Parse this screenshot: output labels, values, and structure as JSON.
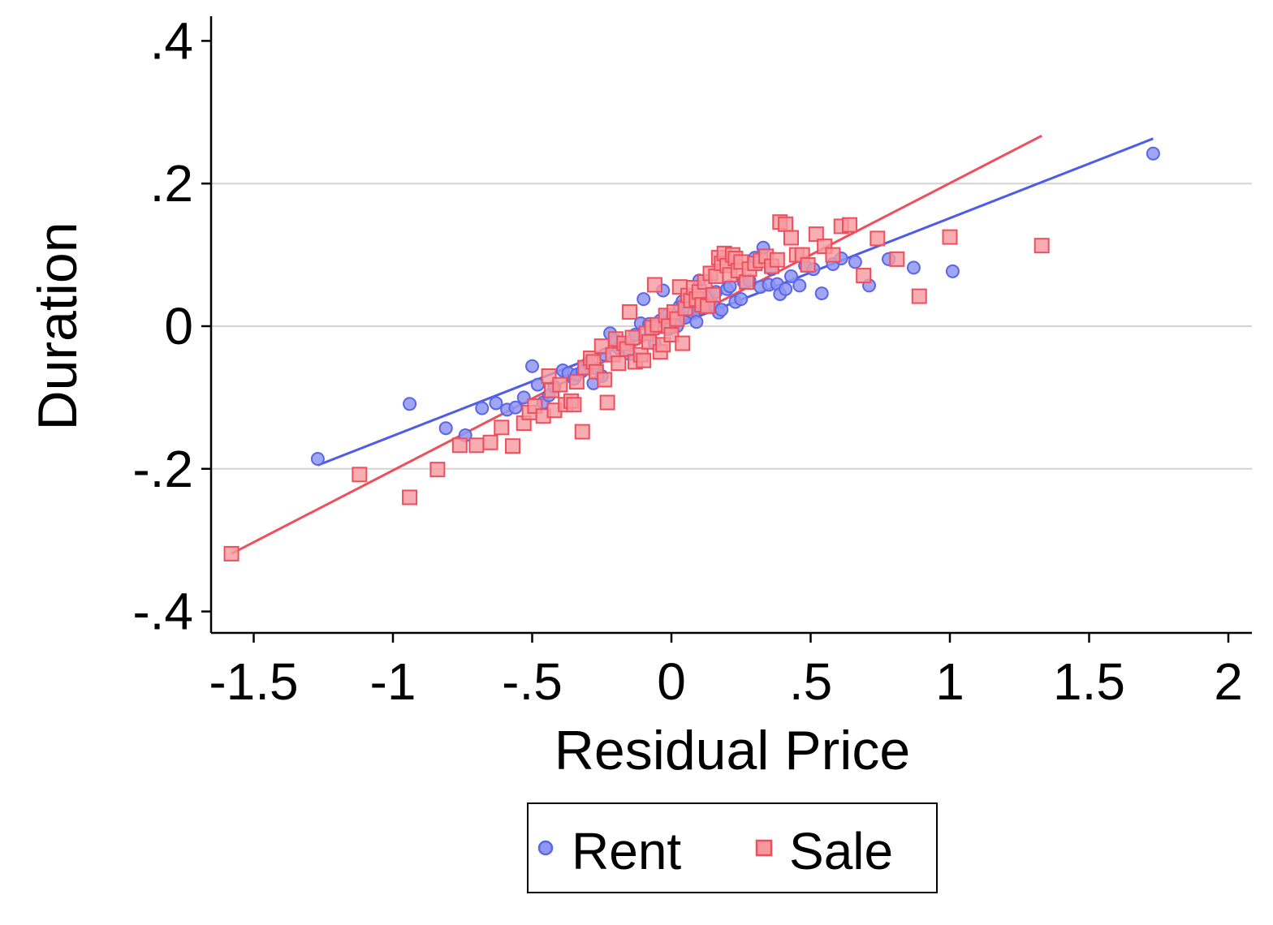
{
  "chart_data": {
    "type": "scatter",
    "title": "",
    "xlabel": "Residual Price",
    "ylabel": "Duration",
    "xlim": [
      -1.65,
      2.08
    ],
    "ylim": [
      -0.43,
      0.43
    ],
    "xticks": [
      {
        "value": -1.5,
        "label": "-1.5"
      },
      {
        "value": -1,
        "label": "-1"
      },
      {
        "value": -0.5,
        "label": "-.5"
      },
      {
        "value": 0,
        "label": "0"
      },
      {
        "value": 0.5,
        "label": ".5"
      },
      {
        "value": 1,
        "label": "1"
      },
      {
        "value": 1.5,
        "label": "1.5"
      },
      {
        "value": 2,
        "label": "2"
      }
    ],
    "yticks": [
      {
        "value": -0.4,
        "label": "-.4"
      },
      {
        "value": -0.2,
        "label": "-.2"
      },
      {
        "value": 0,
        "label": "0"
      },
      {
        "value": 0.2,
        "label": ".2"
      },
      {
        "value": 0.4,
        "label": ".4"
      }
    ],
    "grid": true,
    "legend_position": "bottom",
    "series": [
      {
        "name": "Rent",
        "marker": "circle",
        "color": "#4f5ce8",
        "fit_line": {
          "x": [
            -1.27,
            1.73
          ],
          "y": [
            -0.195,
            0.263
          ]
        },
        "points": [
          [
            -1.27,
            -0.186
          ],
          [
            -0.94,
            -0.109
          ],
          [
            -0.81,
            -0.143
          ],
          [
            -0.74,
            -0.153
          ],
          [
            -0.68,
            -0.115
          ],
          [
            -0.63,
            -0.108
          ],
          [
            -0.59,
            -0.117
          ],
          [
            -0.56,
            -0.114
          ],
          [
            -0.53,
            -0.1
          ],
          [
            -0.5,
            -0.056
          ],
          [
            -0.48,
            -0.082
          ],
          [
            -0.46,
            -0.107
          ],
          [
            -0.44,
            -0.097
          ],
          [
            -0.42,
            -0.085
          ],
          [
            -0.39,
            -0.062
          ],
          [
            -0.37,
            -0.066
          ],
          [
            -0.35,
            -0.074
          ],
          [
            -0.34,
            -0.068
          ],
          [
            -0.32,
            -0.063
          ],
          [
            -0.3,
            -0.052
          ],
          [
            -0.28,
            -0.08
          ],
          [
            -0.27,
            -0.059
          ],
          [
            -0.25,
            -0.07
          ],
          [
            -0.24,
            -0.04
          ],
          [
            -0.22,
            -0.01
          ],
          [
            -0.2,
            -0.02
          ],
          [
            -0.19,
            -0.03
          ],
          [
            -0.17,
            -0.026
          ],
          [
            -0.15,
            -0.039
          ],
          [
            -0.13,
            -0.012
          ],
          [
            -0.11,
            0.004
          ],
          [
            -0.1,
            0.038
          ],
          [
            -0.08,
            0.003
          ],
          [
            -0.06,
            -0.024
          ],
          [
            -0.04,
            0.008
          ],
          [
            -0.03,
            0.05
          ],
          [
            -0.02,
            0.014
          ],
          [
            -0.01,
            -0.004
          ],
          [
            0.0,
            0.012
          ],
          [
            0.02,
            0.0
          ],
          [
            0.03,
            0.028
          ],
          [
            0.04,
            0.035
          ],
          [
            0.05,
            0.012
          ],
          [
            0.06,
            0.022
          ],
          [
            0.07,
            0.042
          ],
          [
            0.08,
            0.018
          ],
          [
            0.09,
            0.006
          ],
          [
            0.1,
            0.064
          ],
          [
            0.12,
            0.03
          ],
          [
            0.13,
            0.041
          ],
          [
            0.15,
            0.03
          ],
          [
            0.16,
            0.048
          ],
          [
            0.17,
            0.019
          ],
          [
            0.18,
            0.023
          ],
          [
            0.2,
            0.052
          ],
          [
            0.21,
            0.056
          ],
          [
            0.23,
            0.034
          ],
          [
            0.25,
            0.038
          ],
          [
            0.26,
            0.062
          ],
          [
            0.28,
            0.064
          ],
          [
            0.3,
            0.096
          ],
          [
            0.32,
            0.055
          ],
          [
            0.33,
            0.11
          ],
          [
            0.35,
            0.058
          ],
          [
            0.36,
            0.08
          ],
          [
            0.38,
            0.059
          ],
          [
            0.39,
            0.045
          ],
          [
            0.41,
            0.052
          ],
          [
            0.43,
            0.07
          ],
          [
            0.46,
            0.057
          ],
          [
            0.48,
            0.085
          ],
          [
            0.51,
            0.08
          ],
          [
            0.54,
            0.046
          ],
          [
            0.58,
            0.087
          ],
          [
            0.61,
            0.095
          ],
          [
            0.66,
            0.09
          ],
          [
            0.71,
            0.057
          ],
          [
            0.78,
            0.094
          ],
          [
            0.87,
            0.082
          ],
          [
            1.01,
            0.077
          ],
          [
            1.73,
            0.242
          ]
        ]
      },
      {
        "name": "Sale",
        "marker": "square",
        "color": "#ee4f5c",
        "fit_line": {
          "x": [
            -1.58,
            1.33
          ],
          "y": [
            -0.319,
            0.267
          ]
        },
        "points": [
          [
            -1.58,
            -0.319
          ],
          [
            -1.12,
            -0.208
          ],
          [
            -0.94,
            -0.24
          ],
          [
            -0.84,
            -0.201
          ],
          [
            -0.76,
            -0.167
          ],
          [
            -0.7,
            -0.167
          ],
          [
            -0.65,
            -0.163
          ],
          [
            -0.61,
            -0.142
          ],
          [
            -0.57,
            -0.168
          ],
          [
            -0.53,
            -0.136
          ],
          [
            -0.51,
            -0.121
          ],
          [
            -0.49,
            -0.112
          ],
          [
            -0.46,
            -0.126
          ],
          [
            -0.44,
            -0.07
          ],
          [
            -0.43,
            -0.09
          ],
          [
            -0.42,
            -0.118
          ],
          [
            -0.4,
            -0.082
          ],
          [
            -0.38,
            -0.11
          ],
          [
            -0.36,
            -0.105
          ],
          [
            -0.35,
            -0.11
          ],
          [
            -0.34,
            -0.078
          ],
          [
            -0.32,
            -0.148
          ],
          [
            -0.31,
            -0.058
          ],
          [
            -0.29,
            -0.045
          ],
          [
            -0.28,
            -0.05
          ],
          [
            -0.27,
            -0.064
          ],
          [
            -0.25,
            -0.028
          ],
          [
            -0.24,
            -0.075
          ],
          [
            -0.23,
            -0.107
          ],
          [
            -0.21,
            -0.04
          ],
          [
            -0.2,
            -0.018
          ],
          [
            -0.19,
            -0.052
          ],
          [
            -0.17,
            -0.024
          ],
          [
            -0.16,
            -0.032
          ],
          [
            -0.15,
            0.02
          ],
          [
            -0.14,
            -0.016
          ],
          [
            -0.13,
            -0.05
          ],
          [
            -0.11,
            -0.04
          ],
          [
            -0.1,
            -0.048
          ],
          [
            -0.09,
            -0.01
          ],
          [
            -0.08,
            -0.022
          ],
          [
            -0.07,
            -0.002
          ],
          [
            -0.06,
            0.058
          ],
          [
            -0.05,
            0.002
          ],
          [
            -0.04,
            -0.036
          ],
          [
            -0.03,
            -0.026
          ],
          [
            -0.02,
            0.015
          ],
          [
            -0.01,
            0.0
          ],
          [
            0.0,
            -0.012
          ],
          [
            0.01,
            0.02
          ],
          [
            0.02,
            0.01
          ],
          [
            0.03,
            0.055
          ],
          [
            0.04,
            -0.024
          ],
          [
            0.05,
            0.025
          ],
          [
            0.06,
            0.043
          ],
          [
            0.07,
            0.036
          ],
          [
            0.08,
            0.054
          ],
          [
            0.09,
            0.038
          ],
          [
            0.1,
            0.048
          ],
          [
            0.11,
            0.03
          ],
          [
            0.12,
            0.062
          ],
          [
            0.13,
            0.028
          ],
          [
            0.14,
            0.074
          ],
          [
            0.15,
            0.044
          ],
          [
            0.16,
            0.07
          ],
          [
            0.17,
            0.096
          ],
          [
            0.18,
            0.088
          ],
          [
            0.19,
            0.102
          ],
          [
            0.2,
            0.085
          ],
          [
            0.21,
            0.072
          ],
          [
            0.22,
            0.1
          ],
          [
            0.23,
            0.095
          ],
          [
            0.24,
            0.078
          ],
          [
            0.25,
            0.09
          ],
          [
            0.27,
            0.062
          ],
          [
            0.28,
            0.08
          ],
          [
            0.3,
            0.088
          ],
          [
            0.32,
            0.092
          ],
          [
            0.34,
            0.098
          ],
          [
            0.36,
            0.084
          ],
          [
            0.38,
            0.093
          ],
          [
            0.39,
            0.146
          ],
          [
            0.41,
            0.143
          ],
          [
            0.43,
            0.124
          ],
          [
            0.45,
            0.1
          ],
          [
            0.47,
            0.1
          ],
          [
            0.49,
            0.086
          ],
          [
            0.52,
            0.129
          ],
          [
            0.55,
            0.112
          ],
          [
            0.58,
            0.1
          ],
          [
            0.61,
            0.14
          ],
          [
            0.64,
            0.142
          ],
          [
            0.69,
            0.071
          ],
          [
            0.74,
            0.123
          ],
          [
            0.81,
            0.094
          ],
          [
            0.89,
            0.042
          ],
          [
            1.0,
            0.125
          ],
          [
            1.33,
            0.113
          ]
        ]
      }
    ]
  },
  "legend": {
    "items": [
      {
        "label": "Rent",
        "color": "#4f5ce8",
        "marker": "circle"
      },
      {
        "label": "Sale",
        "color": "#ee4f5c",
        "marker": "square"
      }
    ]
  },
  "colors": {
    "gridline": "#d3d3d3",
    "axis": "#000000",
    "rent_fill": "#8f97f2",
    "rent_stroke": "#5a66e8",
    "sale_fill": "#f6999f",
    "sale_stroke": "#ee4f5c"
  }
}
